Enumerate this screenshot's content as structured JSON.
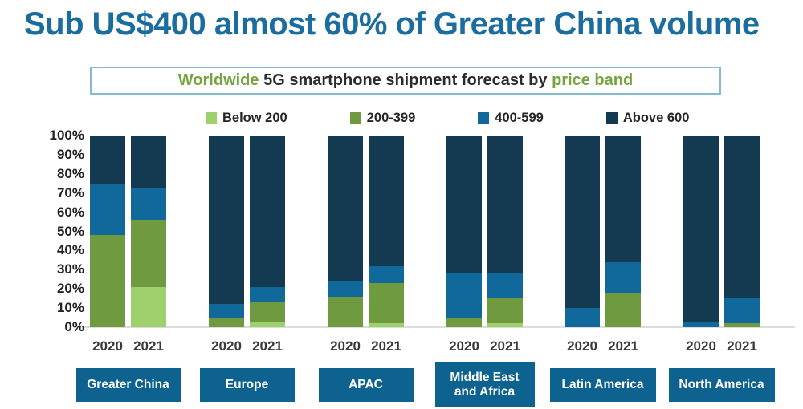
{
  "title": "Sub US$400 almost 60% of Greater China volume",
  "subtitle": {
    "worldwide": "Worldwide",
    "middle": " 5G smartphone shipment forecast by ",
    "price_band": "price band"
  },
  "colors": {
    "title_blue": "#1a6d9e",
    "subtitle_green": "#74a43e",
    "subtitle_border": "#85bccd",
    "region_box": "#0e6290",
    "baseline_gray": "#dcdcdc"
  },
  "chart_data": {
    "type": "bar",
    "stacked": true,
    "percent_stacked": true,
    "title": "Worldwide 5G smartphone shipment forecast by price band",
    "xlabel": "",
    "ylabel": "",
    "ylim": [
      0,
      100
    ],
    "grid": false,
    "legend_position": "top",
    "y_ticks": [
      "100%",
      "90%",
      "80%",
      "70%",
      "60%",
      "50%",
      "40%",
      "30%",
      "20%",
      "10%",
      "0%"
    ],
    "legend": [
      {
        "label": "Below 200",
        "color": "#9ed06d"
      },
      {
        "label": "200-399",
        "color": "#6f9a3f"
      },
      {
        "label": "400-599",
        "color": "#10699a"
      },
      {
        "label": "Above 600",
        "color": "#143a52"
      }
    ],
    "series_order_bottom_to_top": [
      "Below 200",
      "200-399",
      "400-599",
      "Above 600"
    ],
    "regions": [
      {
        "label": "Greater China",
        "bars": [
          {
            "year": "2020",
            "values": [
              0,
              48,
              27,
              25
            ]
          },
          {
            "year": "2021",
            "values": [
              21,
              35,
              17,
              27
            ]
          }
        ]
      },
      {
        "label": "Europe",
        "bars": [
          {
            "year": "2020",
            "values": [
              0,
              5,
              7,
              88
            ]
          },
          {
            "year": "2021",
            "values": [
              3,
              10,
              8,
              79
            ]
          }
        ]
      },
      {
        "label": "APAC",
        "bars": [
          {
            "year": "2020",
            "values": [
              0,
              16,
              8,
              76
            ]
          },
          {
            "year": "2021",
            "values": [
              2,
              21,
              9,
              68
            ]
          }
        ]
      },
      {
        "label": "Middle East and Africa",
        "bars": [
          {
            "year": "2020",
            "values": [
              0,
              5,
              23,
              72
            ]
          },
          {
            "year": "2021",
            "values": [
              2,
              13,
              13,
              72
            ]
          }
        ]
      },
      {
        "label": "Latin America",
        "bars": [
          {
            "year": "2020",
            "values": [
              0,
              0,
              10,
              90
            ]
          },
          {
            "year": "2021",
            "values": [
              0,
              18,
              16,
              66
            ]
          }
        ]
      },
      {
        "label": "North America",
        "bars": [
          {
            "year": "2020",
            "values": [
              0,
              0,
              3,
              97
            ]
          },
          {
            "year": "2021",
            "values": [
              0,
              2,
              13,
              85
            ]
          }
        ]
      }
    ]
  }
}
